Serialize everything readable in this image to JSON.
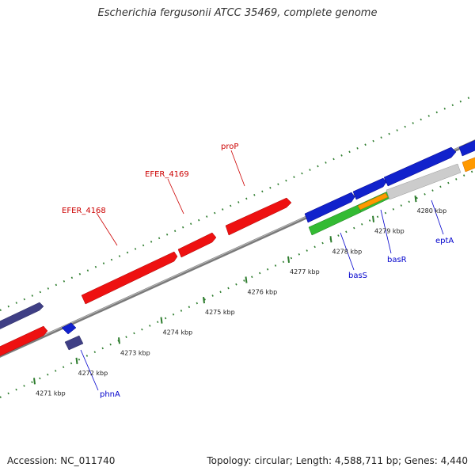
{
  "title": "Escherichia fergusonii ATCC 35469, complete genome",
  "footer": {
    "accession": "Accession: NC_011740",
    "summary": "Topology: circular; Length: 4,588,711 bp; Genes: 4,440"
  },
  "colors": {
    "backbone": "#8a8a8a",
    "tick": "#2e7d2e",
    "red_gene": "#ee1111",
    "blue_gene": "#1122cc",
    "navy_gene": "#3f3f85",
    "green_gene": "#33bb33",
    "orange_gene": "#ff9900",
    "grey_gene": "#cccccc",
    "label_red": "#cc0000",
    "label_blue": "#0000cc"
  },
  "ticks": [
    {
      "label": "4271 kbp",
      "kbp": 4271
    },
    {
      "label": "4272 kbp",
      "kbp": 4272
    },
    {
      "label": "4273 kbp",
      "kbp": 4273
    },
    {
      "label": "4274 kbp",
      "kbp": 4274
    },
    {
      "label": "4275 kbp",
      "kbp": 4275
    },
    {
      "label": "4276 kbp",
      "kbp": 4276
    },
    {
      "label": "4277 kbp",
      "kbp": 4277
    },
    {
      "label": "4278 kbp",
      "kbp": 4278
    },
    {
      "label": "4279 kbp",
      "kbp": 4279
    },
    {
      "label": "4280 kbp",
      "kbp": 4280
    }
  ],
  "gene_labels": [
    {
      "name": "EFER_4168",
      "color": "label_red"
    },
    {
      "name": "EFER_4169",
      "color": "label_red"
    },
    {
      "name": "proP",
      "color": "label_red"
    },
    {
      "name": "phnA",
      "color": "label_blue"
    },
    {
      "name": "basS",
      "color": "label_blue"
    },
    {
      "name": "basR",
      "color": "label_blue"
    },
    {
      "name": "eptA",
      "color": "label_blue"
    }
  ]
}
